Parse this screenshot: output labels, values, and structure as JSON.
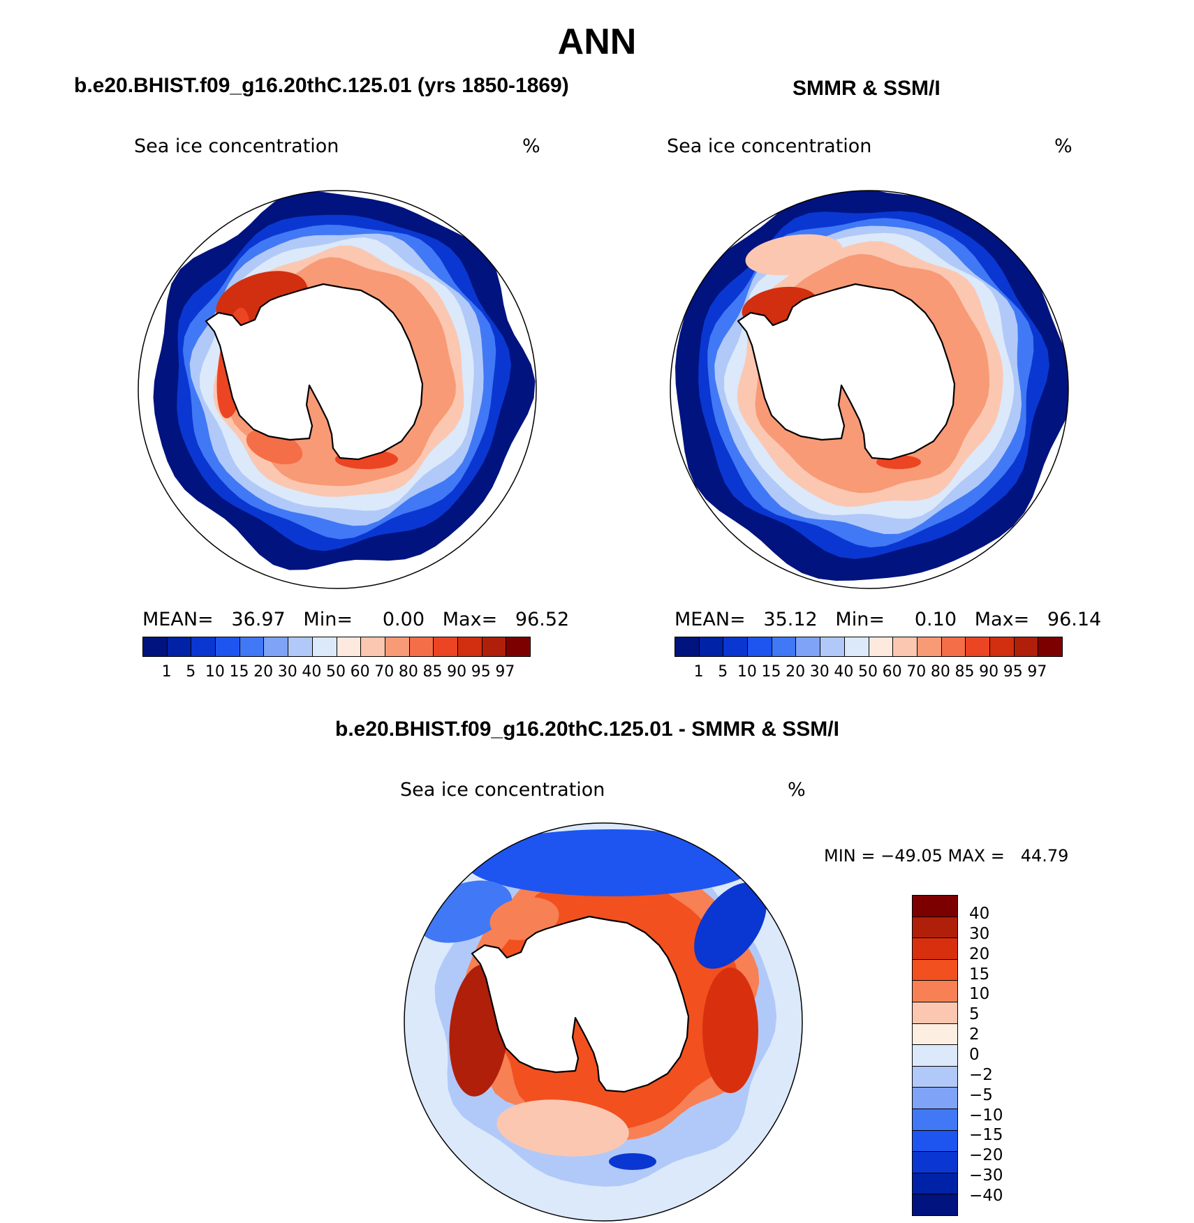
{
  "title": "ANN",
  "colors": {
    "abs_scale": [
      "#00137e",
      "#0022a6",
      "#0a37d1",
      "#1e55f0",
      "#4178f5",
      "#7ea3f7",
      "#b0c9f8",
      "#dbe9fb",
      "#fde9de",
      "#fbc7b1",
      "#f89a76",
      "#f46f47",
      "#ec4523",
      "#d22f10",
      "#b01f0a",
      "#7d0000"
    ],
    "diff_scale": [
      "#7d0000",
      "#b01f0a",
      "#d8300e",
      "#f2501f",
      "#f78055",
      "#fbc7b1",
      "#fdeee2",
      "#dbe9fb",
      "#b0c9f8",
      "#7ea3f7",
      "#4178f5",
      "#1e55f0",
      "#0a37d1",
      "#0022a6",
      "#00137e"
    ],
    "land": "#ffffff",
    "coast": "#000000"
  },
  "panels": {
    "model": {
      "title": "b.e20.BHIST.f09_g16.20thC.125.01 (yrs 1850-1869)",
      "variable": "Sea ice concentration",
      "units": "%",
      "stats": "MEAN=   36.97   Min=     0.00   Max=   96.52",
      "mean": 36.97,
      "min": 0.0,
      "max": 96.52
    },
    "obs": {
      "title": "SMMR & SSM/I",
      "variable": "Sea ice concentration",
      "units": "%",
      "stats": "MEAN=   35.12   Min=     0.10   Max=   96.14",
      "mean": 35.12,
      "min": 0.1,
      "max": 96.14
    },
    "diff": {
      "title": "b.e20.BHIST.f09_g16.20thC.125.01 - SMMR & SSM/I",
      "variable": "Sea ice concentration",
      "units": "%",
      "stats": "MIN = −49.05 MAX =   44.79",
      "min": -49.05,
      "max": 44.79
    }
  },
  "abs_levels": [
    "1",
    "5",
    "10",
    "15",
    "20",
    "30",
    "40",
    "50",
    "60",
    "70",
    "80",
    "85",
    "90",
    "95",
    "97"
  ],
  "diff_levels": [
    "40",
    "30",
    "20",
    "15",
    "10",
    "5",
    "2",
    "0",
    "−2",
    "−5",
    "−10",
    "−15",
    "−20",
    "−30",
    "−40"
  ]
}
